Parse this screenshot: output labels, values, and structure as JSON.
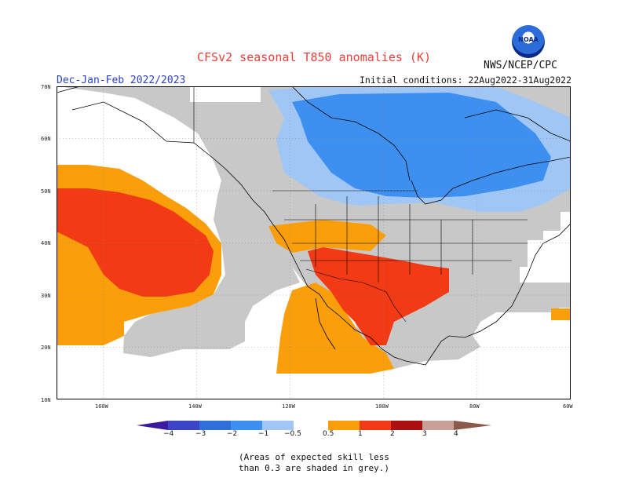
{
  "header": {
    "title": "CFSv2 seasonal T850 anomalies (K)",
    "agency": "NWS/NCEP/CPC",
    "logo_text": "NOAA",
    "season": "Dec-Jan-Feb 2022/2023",
    "initial_conditions": "Initial conditions: 22Aug2022-31Aug2022"
  },
  "map": {
    "lat_labels": [
      "70N",
      "60N",
      "50N",
      "40N",
      "30N",
      "20N",
      "10N"
    ],
    "lon_labels": [
      "160W",
      "140W",
      "120W",
      "100W",
      "80W",
      "60W"
    ],
    "lat_range": [
      10,
      70
    ],
    "lon_range": [
      -170,
      -60
    ],
    "region_colors": {
      "no_skill_grey": "#c8c8c8",
      "neg_0_5_to_1": "#9fc6f5",
      "neg_1_to_2": "#3d8ff0",
      "pos_0_5_to_1": "#fa9e0a",
      "pos_1_to_2": "#f23b14"
    }
  },
  "legend": {
    "tick_labels": [
      "−4",
      "−3",
      "−2",
      "−1",
      "−0.5",
      "0.5",
      "1",
      "2",
      "3",
      "4"
    ],
    "colors": [
      "#3c1aa0",
      "#3c44c8",
      "#2e6fd8",
      "#3d8ff0",
      "#9fc6f5",
      "#ffffff",
      "#fa9e0a",
      "#f23b14",
      "#ab1010",
      "#a0080a",
      "#c8a098",
      "#8b5a4a"
    ]
  },
  "footnote": {
    "line1": "(Areas of expected skill less",
    "line2": "than 0.3 are shaded in grey.)"
  }
}
